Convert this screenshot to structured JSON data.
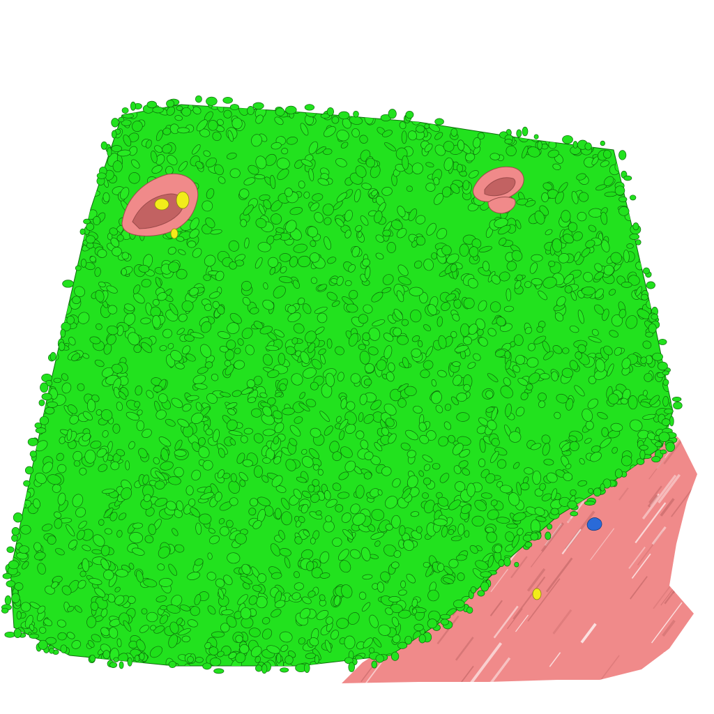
{
  "scene": {
    "background": "#ffffff",
    "colors": {
      "green_blobs": "#22e21e",
      "green_blobs_outline": "#0d6a0b",
      "pink_tissue": "#f08a8a",
      "pink_tissue_outline": "#9a4a4a",
      "yellow_spots": "#f2ec1a",
      "blue_spot": "#2a6ad8"
    },
    "objects": [
      {
        "name": "green-blob-layer",
        "color_key": "green_blobs"
      },
      {
        "name": "pink-tissue-region",
        "color_key": "pink_tissue"
      },
      {
        "name": "pink-ring-left",
        "color_key": "pink_tissue"
      },
      {
        "name": "pink-ring-right",
        "color_key": "pink_tissue"
      },
      {
        "name": "yellow-spots",
        "color_key": "yellow_spots"
      },
      {
        "name": "blue-spot",
        "color_key": "blue_spot"
      }
    ]
  }
}
